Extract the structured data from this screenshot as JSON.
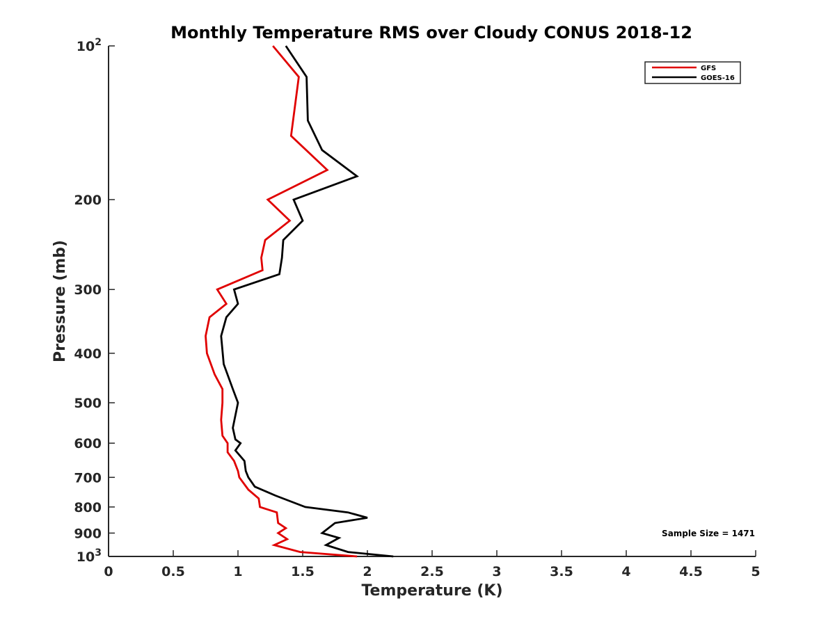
{
  "chart_data": {
    "type": "line",
    "title": "Monthly Temperature RMS over Cloudy CONUS  2018-12",
    "xlabel": "Temperature (K)",
    "ylabel": "Pressure (mb)",
    "xlim": [
      0,
      5
    ],
    "ylim": [
      100,
      1000
    ],
    "y_scale": "log",
    "y_reversed": true,
    "x_ticks": [
      "0",
      "0.5",
      "1",
      "1.5",
      "2",
      "2.5",
      "3",
      "3.5",
      "4",
      "4.5",
      "5"
    ],
    "x_tick_values": [
      0,
      0.5,
      1,
      1.5,
      2,
      2.5,
      3,
      3.5,
      4,
      4.5,
      5
    ],
    "y_ticks": [
      {
        "value": 100,
        "base": "10",
        "exp": "2"
      },
      {
        "value": 200,
        "label": "200"
      },
      {
        "value": 300,
        "label": "300"
      },
      {
        "value": 400,
        "label": "400"
      },
      {
        "value": 500,
        "label": "500"
      },
      {
        "value": 600,
        "label": "600"
      },
      {
        "value": 700,
        "label": "700"
      },
      {
        "value": 800,
        "label": "800"
      },
      {
        "value": 900,
        "label": "900"
      },
      {
        "value": 1000,
        "base": "10",
        "exp": "3"
      }
    ],
    "grid": false,
    "legend_position": "top-right",
    "annotation": "Sample Size = 1471",
    "series": [
      {
        "name": "GFS",
        "color": "#e00000",
        "points": [
          [
            1.27,
            100
          ],
          [
            1.47,
            115
          ],
          [
            1.41,
            150
          ],
          [
            1.69,
            175
          ],
          [
            1.23,
            200
          ],
          [
            1.4,
            220
          ],
          [
            1.21,
            240
          ],
          [
            1.18,
            260
          ],
          [
            1.19,
            275
          ],
          [
            0.84,
            300
          ],
          [
            0.91,
            320
          ],
          [
            0.78,
            340
          ],
          [
            0.75,
            370
          ],
          [
            0.76,
            400
          ],
          [
            0.82,
            440
          ],
          [
            0.88,
            470
          ],
          [
            0.88,
            500
          ],
          [
            0.87,
            540
          ],
          [
            0.88,
            580
          ],
          [
            0.92,
            600
          ],
          [
            0.92,
            625
          ],
          [
            0.97,
            650
          ],
          [
            1.0,
            680
          ],
          [
            1.01,
            700
          ],
          [
            1.08,
            740
          ],
          [
            1.16,
            770
          ],
          [
            1.17,
            800
          ],
          [
            1.3,
            820
          ],
          [
            1.31,
            860
          ],
          [
            1.37,
            880
          ],
          [
            1.31,
            900
          ],
          [
            1.38,
            925
          ],
          [
            1.28,
            950
          ],
          [
            1.48,
            980
          ],
          [
            1.92,
            1000
          ]
        ]
      },
      {
        "name": "GOES-16",
        "color": "#000000",
        "points": [
          [
            1.37,
            100
          ],
          [
            1.53,
            115
          ],
          [
            1.54,
            140
          ],
          [
            1.65,
            160
          ],
          [
            1.92,
            180
          ],
          [
            1.43,
            200
          ],
          [
            1.5,
            220
          ],
          [
            1.35,
            240
          ],
          [
            1.34,
            260
          ],
          [
            1.32,
            280
          ],
          [
            0.97,
            300
          ],
          [
            1.0,
            320
          ],
          [
            0.91,
            340
          ],
          [
            0.87,
            370
          ],
          [
            0.89,
            420
          ],
          [
            0.96,
            470
          ],
          [
            1.0,
            500
          ],
          [
            0.96,
            560
          ],
          [
            0.98,
            590
          ],
          [
            1.02,
            600
          ],
          [
            0.98,
            620
          ],
          [
            1.05,
            650
          ],
          [
            1.06,
            680
          ],
          [
            1.08,
            700
          ],
          [
            1.13,
            730
          ],
          [
            1.29,
            760
          ],
          [
            1.52,
            800
          ],
          [
            1.85,
            820
          ],
          [
            2.0,
            840
          ],
          [
            1.75,
            860
          ],
          [
            1.65,
            900
          ],
          [
            1.78,
            920
          ],
          [
            1.68,
            950
          ],
          [
            1.85,
            980
          ],
          [
            2.2,
            1000
          ]
        ]
      }
    ]
  }
}
